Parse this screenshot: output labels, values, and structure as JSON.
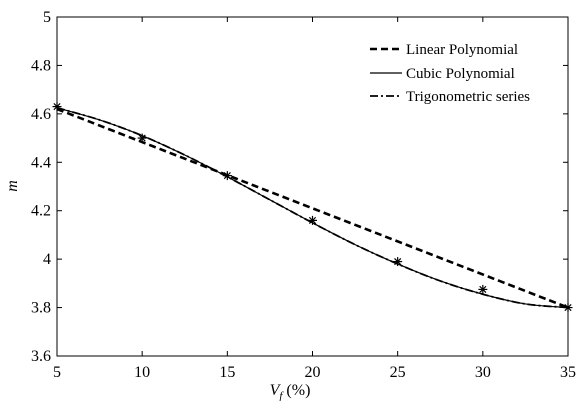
{
  "chart_data": {
    "type": "line",
    "title": "",
    "xlabel_main": "V",
    "xlabel_sub": "f",
    "xlabel_unit": " (%)",
    "ylabel": "m",
    "xlim": [
      5,
      35
    ],
    "ylim": [
      3.6,
      5.0
    ],
    "x_ticks": [
      5,
      10,
      15,
      20,
      25,
      30,
      35
    ],
    "x_tick_labels": [
      "5",
      "10",
      "15",
      "20",
      "25",
      "30",
      "35"
    ],
    "y_ticks": [
      3.6,
      3.8,
      4.0,
      4.2,
      4.4,
      4.6,
      4.8,
      5.0
    ],
    "y_tick_labels": [
      "3.6",
      "3.8",
      "4",
      "4.2",
      "4.4",
      "4.6",
      "4.8",
      "5"
    ],
    "grid": false,
    "legend_position": "top-right",
    "series": [
      {
        "name": "Linear Polynomial",
        "style": "dashed-bold",
        "color": "#000000",
        "x": [
          5,
          35
        ],
        "y": [
          4.62,
          3.8
        ]
      },
      {
        "name": "Cubic Polynomial",
        "style": "solid",
        "color": "#000000",
        "x": [
          5,
          7.5,
          10,
          12.5,
          15,
          17.5,
          20,
          22.5,
          25,
          27.5,
          30,
          32.5,
          35
        ],
        "y": [
          4.625,
          4.575,
          4.51,
          4.43,
          4.34,
          4.245,
          4.15,
          4.06,
          3.98,
          3.91,
          3.855,
          3.815,
          3.8
        ]
      },
      {
        "name": "Trigonometric series",
        "style": "dash-dot",
        "color": "#000000",
        "x": [
          5,
          7.5,
          10,
          12.5,
          15,
          17.5,
          20,
          22.5,
          25,
          27.5,
          30,
          32.5,
          35
        ],
        "y": [
          4.625,
          4.575,
          4.51,
          4.43,
          4.34,
          4.245,
          4.15,
          4.06,
          3.98,
          3.91,
          3.855,
          3.815,
          3.8
        ]
      }
    ],
    "markers": {
      "symbol": "*",
      "x": [
        5,
        10,
        15,
        20,
        25,
        30,
        35
      ],
      "y": [
        4.63,
        4.5,
        4.345,
        4.16,
        3.99,
        3.875,
        3.8
      ]
    }
  }
}
